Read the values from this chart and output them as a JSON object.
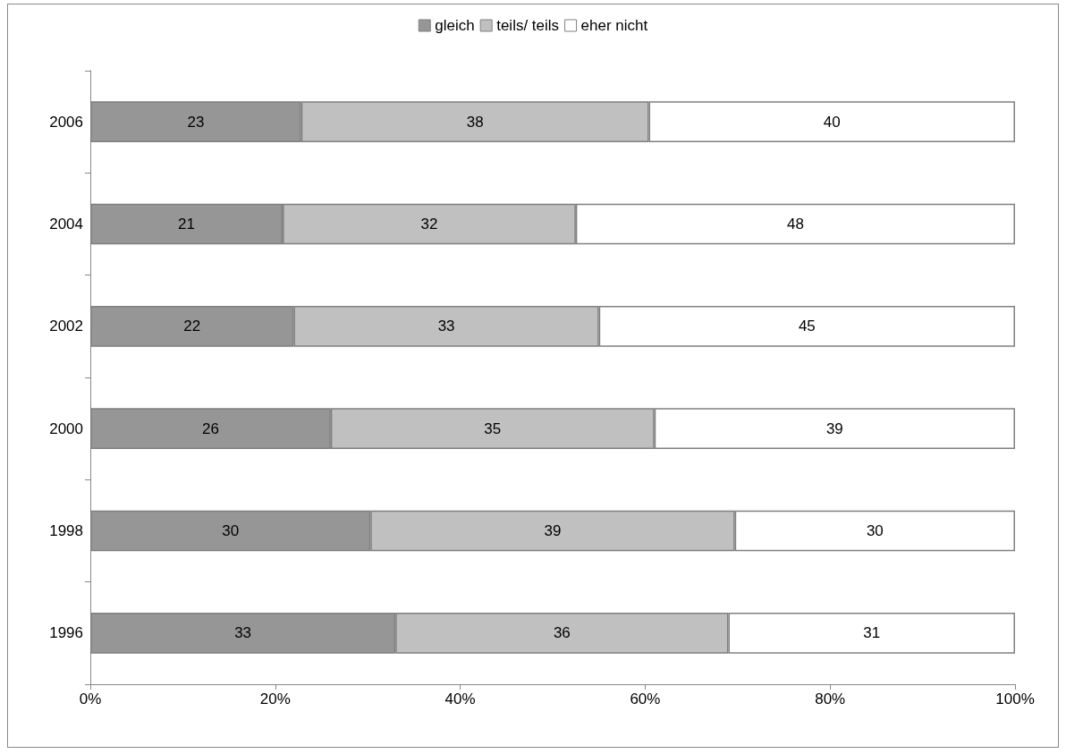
{
  "chart_data": {
    "type": "bar",
    "orientation": "horizontal",
    "stacked": true,
    "categories": [
      "2006",
      "2004",
      "2002",
      "2000",
      "1998",
      "1996"
    ],
    "series": [
      {
        "name": "gleich",
        "color": "#969696",
        "values": [
          22.8,
          20.8,
          22,
          26,
          30.3,
          33
        ],
        "value_labels": [
          "23",
          "21",
          "22",
          "26",
          "30",
          "33"
        ]
      },
      {
        "name": "teils/ teils",
        "color": "#c0c0c0",
        "values": [
          37.6,
          31.7,
          33,
          35,
          39.4,
          36
        ],
        "value_labels": [
          "38",
          "32",
          "33",
          "35",
          "39",
          "36"
        ]
      },
      {
        "name": "eher nicht",
        "color": "#ffffff",
        "values": [
          39.6,
          47.5,
          45,
          39,
          30.3,
          31
        ],
        "value_labels": [
          "40",
          "48",
          "45",
          "39",
          "30",
          "31"
        ]
      }
    ],
    "xlim": [
      0,
      100
    ],
    "xticks": [
      {
        "value": 0,
        "label": "0%"
      },
      {
        "value": 20,
        "label": "20%"
      },
      {
        "value": 40,
        "label": "40%"
      },
      {
        "value": 60,
        "label": "60%"
      },
      {
        "value": 80,
        "label": "80%"
      },
      {
        "value": 100,
        "label": "100%"
      }
    ],
    "grid": false,
    "legend": "top"
  }
}
